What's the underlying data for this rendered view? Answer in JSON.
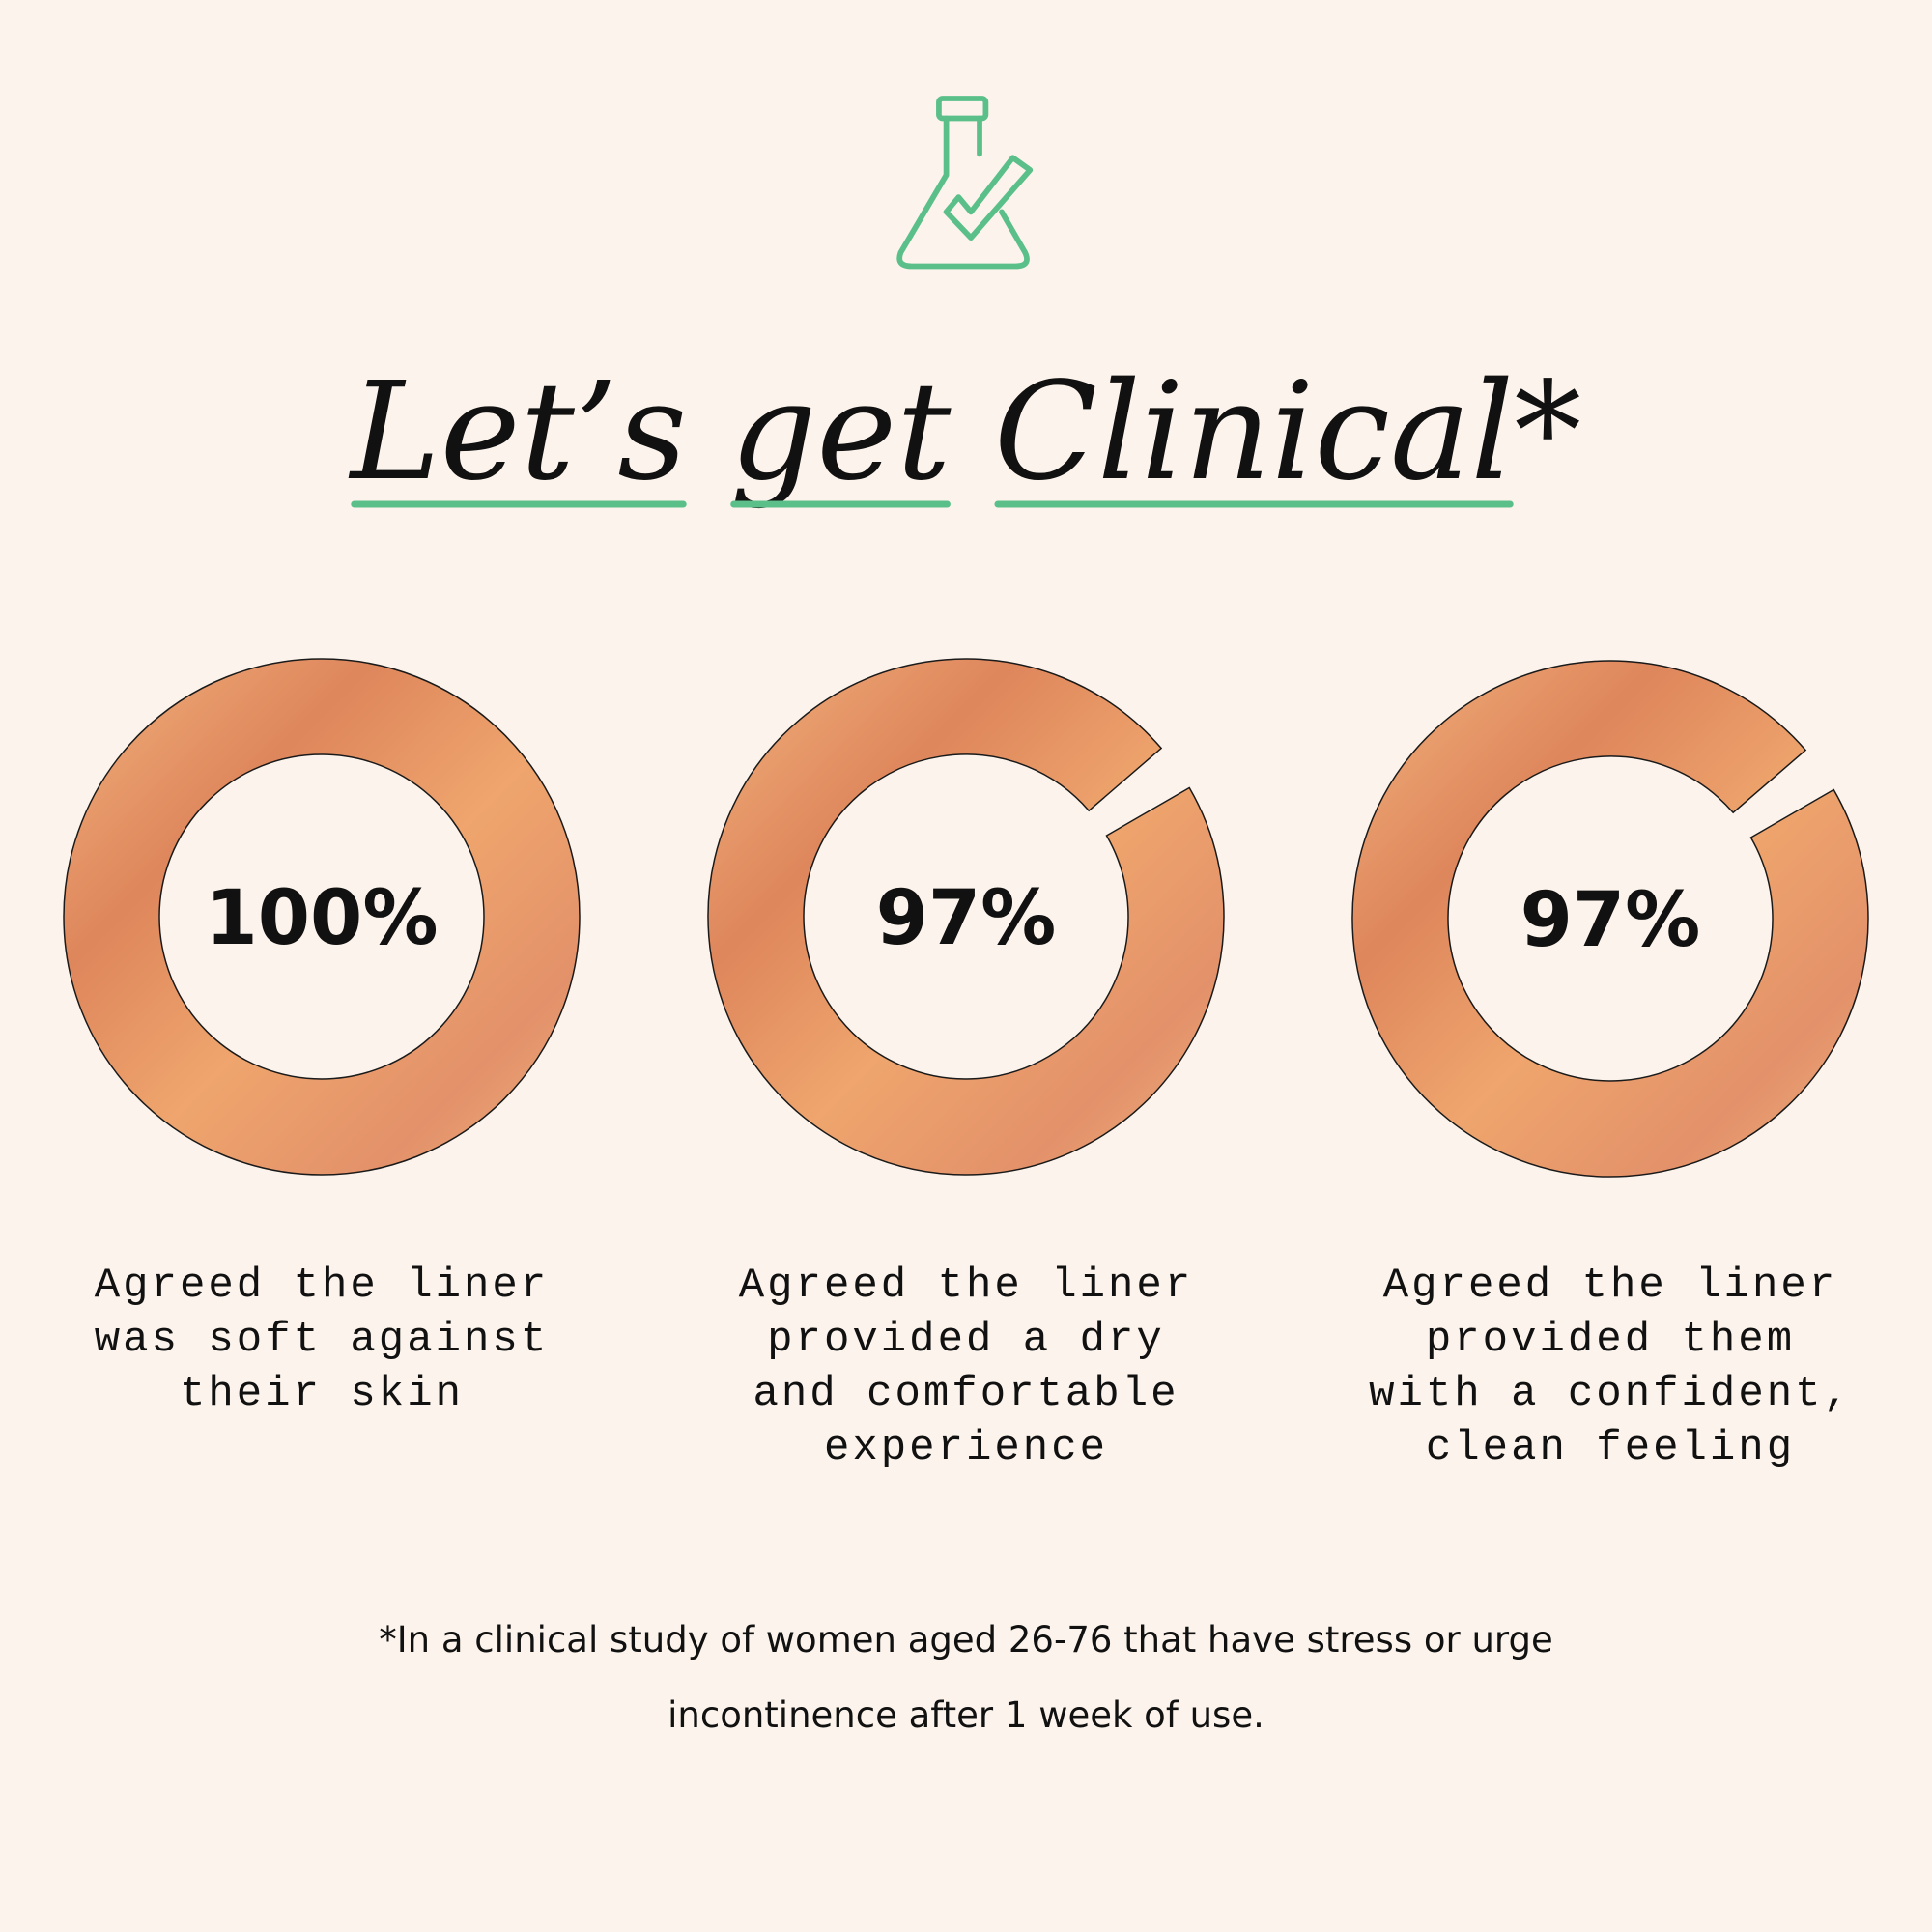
{
  "header": {
    "title": "Let’s get Clinical*"
  },
  "chart_data": [
    {
      "type": "donut",
      "values": [
        100
      ],
      "value_labels": [
        "100%"
      ],
      "ylim": [
        0,
        100
      ],
      "caption": [
        "Agreed the liner",
        "was soft against",
        "their skin"
      ]
    },
    {
      "type": "donut",
      "values": [
        97
      ],
      "value_labels": [
        "97%"
      ],
      "ylim": [
        0,
        100
      ],
      "caption": [
        "Agreed the liner",
        "provided a dry",
        "and comfortable",
        "experience"
      ]
    },
    {
      "type": "donut",
      "values": [
        97
      ],
      "value_labels": [
        "97%"
      ],
      "ylim": [
        0,
        100
      ],
      "caption": [
        "Agreed the liner",
        "provided them",
        "with a confident,",
        "clean feeling"
      ]
    }
  ],
  "footnote": [
    "*In a clinical study of women aged 26-76 that have stress or urge",
    "incontinence after 1 week of use."
  ]
}
